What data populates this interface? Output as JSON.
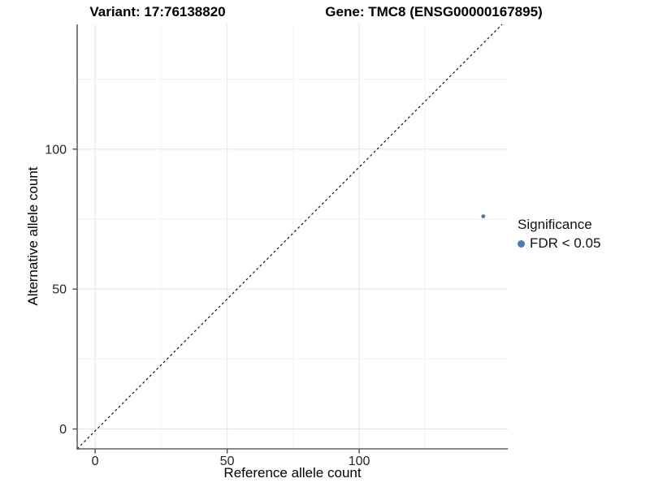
{
  "figure": {
    "titles": {
      "variant": "Variant: 17:76138820",
      "gene": "Gene: TMC8 (ENSG00000167895)"
    },
    "axes": {
      "x_label": "Reference allele count",
      "y_label": "Alternative allele count"
    },
    "legend": {
      "title": "Significance",
      "items": [
        {
          "label": "FDR < 0.05",
          "color": "#4e7cae"
        }
      ]
    }
  },
  "chart_data": {
    "type": "scatter",
    "title_left": "Variant: 17:76138820",
    "title_right": "Gene: TMC8 (ENSG00000167895)",
    "xlabel": "Reference allele count",
    "ylabel": "Alternative allele count",
    "points": [
      {
        "x": 147,
        "y": 76,
        "series": "FDR < 0.05",
        "color": "#4e7cae"
      }
    ],
    "x_ticks": [
      0,
      50,
      100
    ],
    "y_ticks": [
      0,
      50,
      100
    ],
    "x_minor_ticks": [
      25,
      75,
      125
    ],
    "y_minor_ticks": [
      25,
      75,
      125
    ],
    "xlim": [
      -6.8,
      156.3
    ],
    "ylim": [
      -7.1,
      144.6
    ],
    "reference_line": {
      "type": "identity",
      "slope": 1,
      "intercept": 0,
      "style": "dashed",
      "color": "#111111"
    },
    "grid": "major+minor",
    "legend_position": "right",
    "colors": {
      "point": "#4e7cae",
      "grid_major": "#e4e4e4",
      "grid_minor": "#f2f2f2",
      "axis_line": "#404040",
      "tick_text": "#262626"
    }
  }
}
